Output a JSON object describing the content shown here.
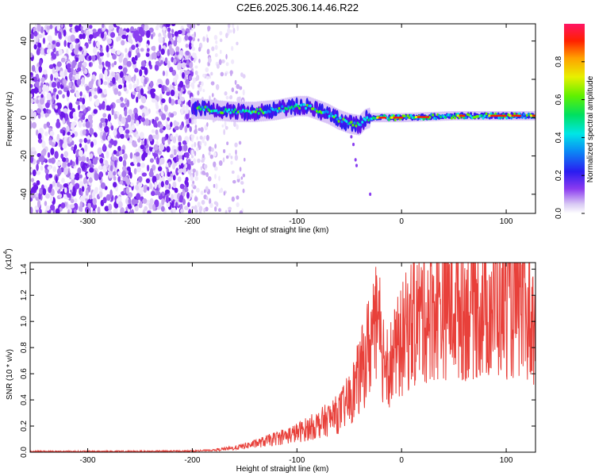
{
  "title": "C2E6.2025.306.14.46.R22",
  "chart_data": [
    {
      "type": "heatmap",
      "name": "spectrogram",
      "xlabel": "Height of straight line (km)",
      "ylabel": "Frequency (Hz)",
      "xlim": [
        -355,
        128
      ],
      "ylim": [
        -50,
        49
      ],
      "xticks": [
        -300,
        -200,
        -100,
        0,
        100
      ],
      "yticks": [
        -40,
        -20,
        0,
        20,
        40
      ],
      "noise_region_km": [
        -355,
        -200
      ],
      "sparse_noise_region_km": [
        -200,
        -150
      ],
      "signal_band_center_hz": {
        "x": [
          -200,
          -180,
          -160,
          -140,
          -120,
          -100,
          -90,
          -80,
          -70,
          -60,
          -50,
          -40,
          -35,
          -30,
          0,
          50,
          100,
          128
        ],
        "y": [
          5,
          4,
          3,
          3,
          4,
          6,
          6,
          4,
          2,
          -1,
          -3,
          -4,
          -1,
          0,
          0,
          1,
          1,
          1
        ]
      },
      "colorbar": {
        "label": "Normalized spectral amplitude",
        "range": [
          0,
          1
        ],
        "ticks": [
          0.0,
          0.2,
          0.4,
          0.6,
          0.8
        ]
      }
    },
    {
      "type": "line",
      "name": "snr",
      "xlabel": "Height of straight line (km)",
      "ylabel": "SNR (10 * v/v)",
      "yscale_label": "(x10",
      "yscale_exp": "4",
      "xlim": [
        -355,
        128
      ],
      "ylim": [
        0,
        1.45
      ],
      "xticks": [
        -300,
        -200,
        -100,
        0,
        100
      ],
      "yticks": [
        0.0,
        0.2,
        0.4,
        0.6,
        0.8,
        1.0,
        1.2,
        1.4
      ],
      "color": "#e8403a",
      "series": [
        {
          "name": "SNR envelope",
          "x": [
            -355,
            -250,
            -200,
            -180,
            -160,
            -140,
            -120,
            -100,
            -80,
            -60,
            -50,
            -40,
            -30,
            -25,
            -20,
            -10,
            0,
            10,
            20,
            30,
            40,
            50,
            60,
            70,
            80,
            90,
            100,
            110,
            120,
            128
          ],
          "y": [
            0.005,
            0.005,
            0.008,
            0.015,
            0.03,
            0.06,
            0.1,
            0.14,
            0.2,
            0.28,
            0.38,
            0.55,
            0.8,
            0.9,
            0.75,
            0.65,
            0.8,
            0.95,
            1.0,
            1.05,
            1.08,
            1.08,
            1.05,
            1.08,
            1.05,
            1.05,
            1.1,
            1.05,
            1.0,
            0.95
          ]
        }
      ]
    }
  ]
}
